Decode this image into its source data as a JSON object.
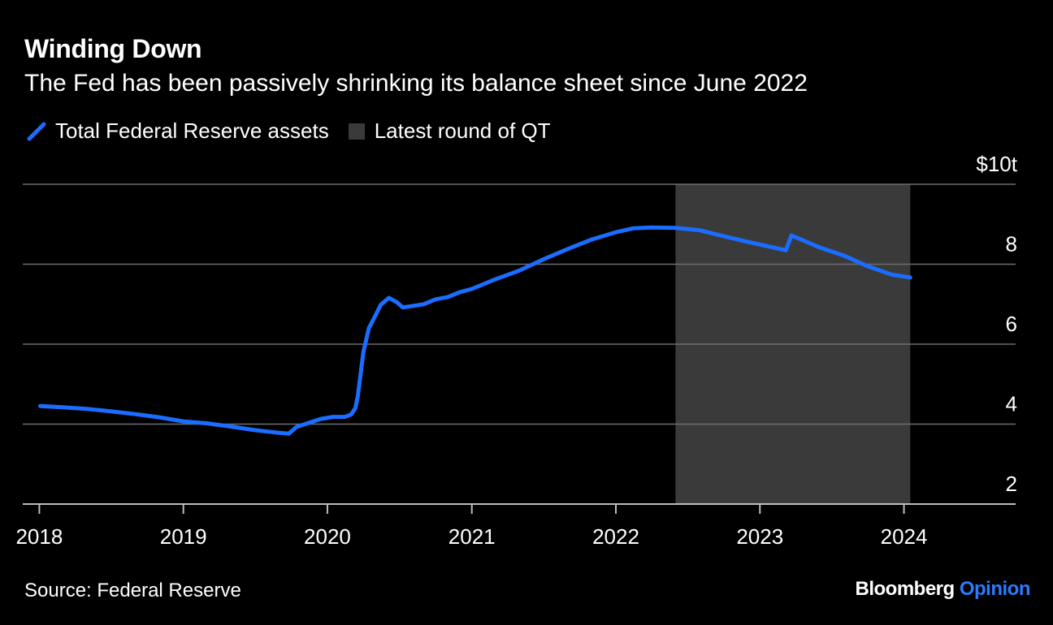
{
  "header": {
    "title": "Winding Down",
    "subtitle": "The Fed has been passively shrinking its balance sheet since June 2022"
  },
  "legend": {
    "line_label": "Total Federal Reserve assets",
    "shade_label": "Latest round of QT"
  },
  "footer": {
    "source": "Source: Federal Reserve",
    "logo_main": "Bloomberg",
    "logo_accent": "Opinion"
  },
  "colors": {
    "line": "#1a6dff",
    "shade": "#3a3a3a",
    "grid": "#6e6e6e",
    "logo_accent": "#2b7bff"
  },
  "chart_data": {
    "type": "line",
    "title": "Winding Down",
    "subtitle": "The Fed has been passively shrinking its balance sheet since June 2022",
    "xlabel": "",
    "ylabel": "",
    "x_ticks": [
      "2018",
      "2019",
      "2020",
      "2021",
      "2022",
      "2023",
      "2024"
    ],
    "y_ticks": [
      {
        "value": 2,
        "label": "2"
      },
      {
        "value": 4,
        "label": "4"
      },
      {
        "value": 6,
        "label": "6"
      },
      {
        "value": 8,
        "label": "8"
      },
      {
        "value": 10,
        "label": "$10t"
      }
    ],
    "xlim": [
      "2017-11-20",
      "2024-10-10"
    ],
    "ylim": [
      2,
      10
    ],
    "grid": true,
    "legend_position": "top-left",
    "shaded_region": {
      "label": "Latest round of QT",
      "start": "2022-06-01",
      "end": "2024-01-17"
    },
    "series": [
      {
        "name": "Total Federal Reserve assets",
        "points": [
          [
            "2018-01-03",
            4.45
          ],
          [
            "2018-03-01",
            4.42
          ],
          [
            "2018-05-01",
            4.38
          ],
          [
            "2018-07-01",
            4.32
          ],
          [
            "2018-09-01",
            4.25
          ],
          [
            "2018-11-01",
            4.17
          ],
          [
            "2019-01-01",
            4.07
          ],
          [
            "2019-03-01",
            4.02
          ],
          [
            "2019-05-01",
            3.94
          ],
          [
            "2019-07-01",
            3.85
          ],
          [
            "2019-09-01",
            3.78
          ],
          [
            "2019-09-25",
            3.76
          ],
          [
            "2019-10-15",
            3.93
          ],
          [
            "2019-11-15",
            4.03
          ],
          [
            "2019-12-15",
            4.13
          ],
          [
            "2020-01-15",
            4.18
          ],
          [
            "2020-02-15",
            4.18
          ],
          [
            "2020-03-01",
            4.24
          ],
          [
            "2020-03-12",
            4.4
          ],
          [
            "2020-03-18",
            4.7
          ],
          [
            "2020-03-25",
            5.25
          ],
          [
            "2020-04-01",
            5.8
          ],
          [
            "2020-04-15",
            6.4
          ],
          [
            "2020-05-01",
            6.7
          ],
          [
            "2020-05-15",
            6.98
          ],
          [
            "2020-06-05",
            7.16
          ],
          [
            "2020-06-25",
            7.05
          ],
          [
            "2020-07-10",
            6.92
          ],
          [
            "2020-08-01",
            6.95
          ],
          [
            "2020-09-01",
            7.0
          ],
          [
            "2020-10-01",
            7.12
          ],
          [
            "2020-11-01",
            7.18
          ],
          [
            "2020-12-01",
            7.3
          ],
          [
            "2021-01-01",
            7.38
          ],
          [
            "2021-03-01",
            7.62
          ],
          [
            "2021-05-01",
            7.84
          ],
          [
            "2021-07-01",
            8.12
          ],
          [
            "2021-09-01",
            8.38
          ],
          [
            "2021-11-01",
            8.62
          ],
          [
            "2022-01-01",
            8.8
          ],
          [
            "2022-02-15",
            8.9
          ],
          [
            "2022-04-01",
            8.92
          ],
          [
            "2022-06-01",
            8.91
          ],
          [
            "2022-08-01",
            8.85
          ],
          [
            "2022-10-01",
            8.7
          ],
          [
            "2022-12-01",
            8.56
          ],
          [
            "2023-03-08",
            8.35
          ],
          [
            "2023-03-22",
            8.72
          ],
          [
            "2023-04-15",
            8.62
          ],
          [
            "2023-06-01",
            8.42
          ],
          [
            "2023-08-01",
            8.22
          ],
          [
            "2023-10-01",
            7.95
          ],
          [
            "2023-12-01",
            7.74
          ],
          [
            "2024-01-17",
            7.67
          ]
        ]
      }
    ]
  }
}
